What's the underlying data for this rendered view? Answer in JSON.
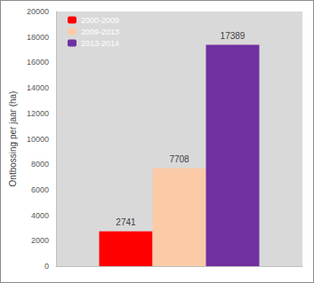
{
  "chart_data": {
    "type": "bar",
    "y_label": "Ontbossing per jaar (ha)",
    "categories": [
      null
    ],
    "series": [
      {
        "name": "2000-2009",
        "color": "#ff0000",
        "values": [
          2741
        ]
      },
      {
        "name": "2009-2013",
        "color": "#fbcba8",
        "values": [
          7708
        ]
      },
      {
        "name": "2013-2014",
        "color": "#7030a0",
        "values": [
          17389
        ]
      }
    ],
    "ylim": [
      0,
      20000
    ],
    "yticks": [
      0,
      2000,
      4000,
      6000,
      8000,
      10000,
      12000,
      14000,
      16000,
      18000,
      20000
    ],
    "data_labels": true,
    "legend": "upper left",
    "grid": false,
    "tick_labels": "y"
  }
}
